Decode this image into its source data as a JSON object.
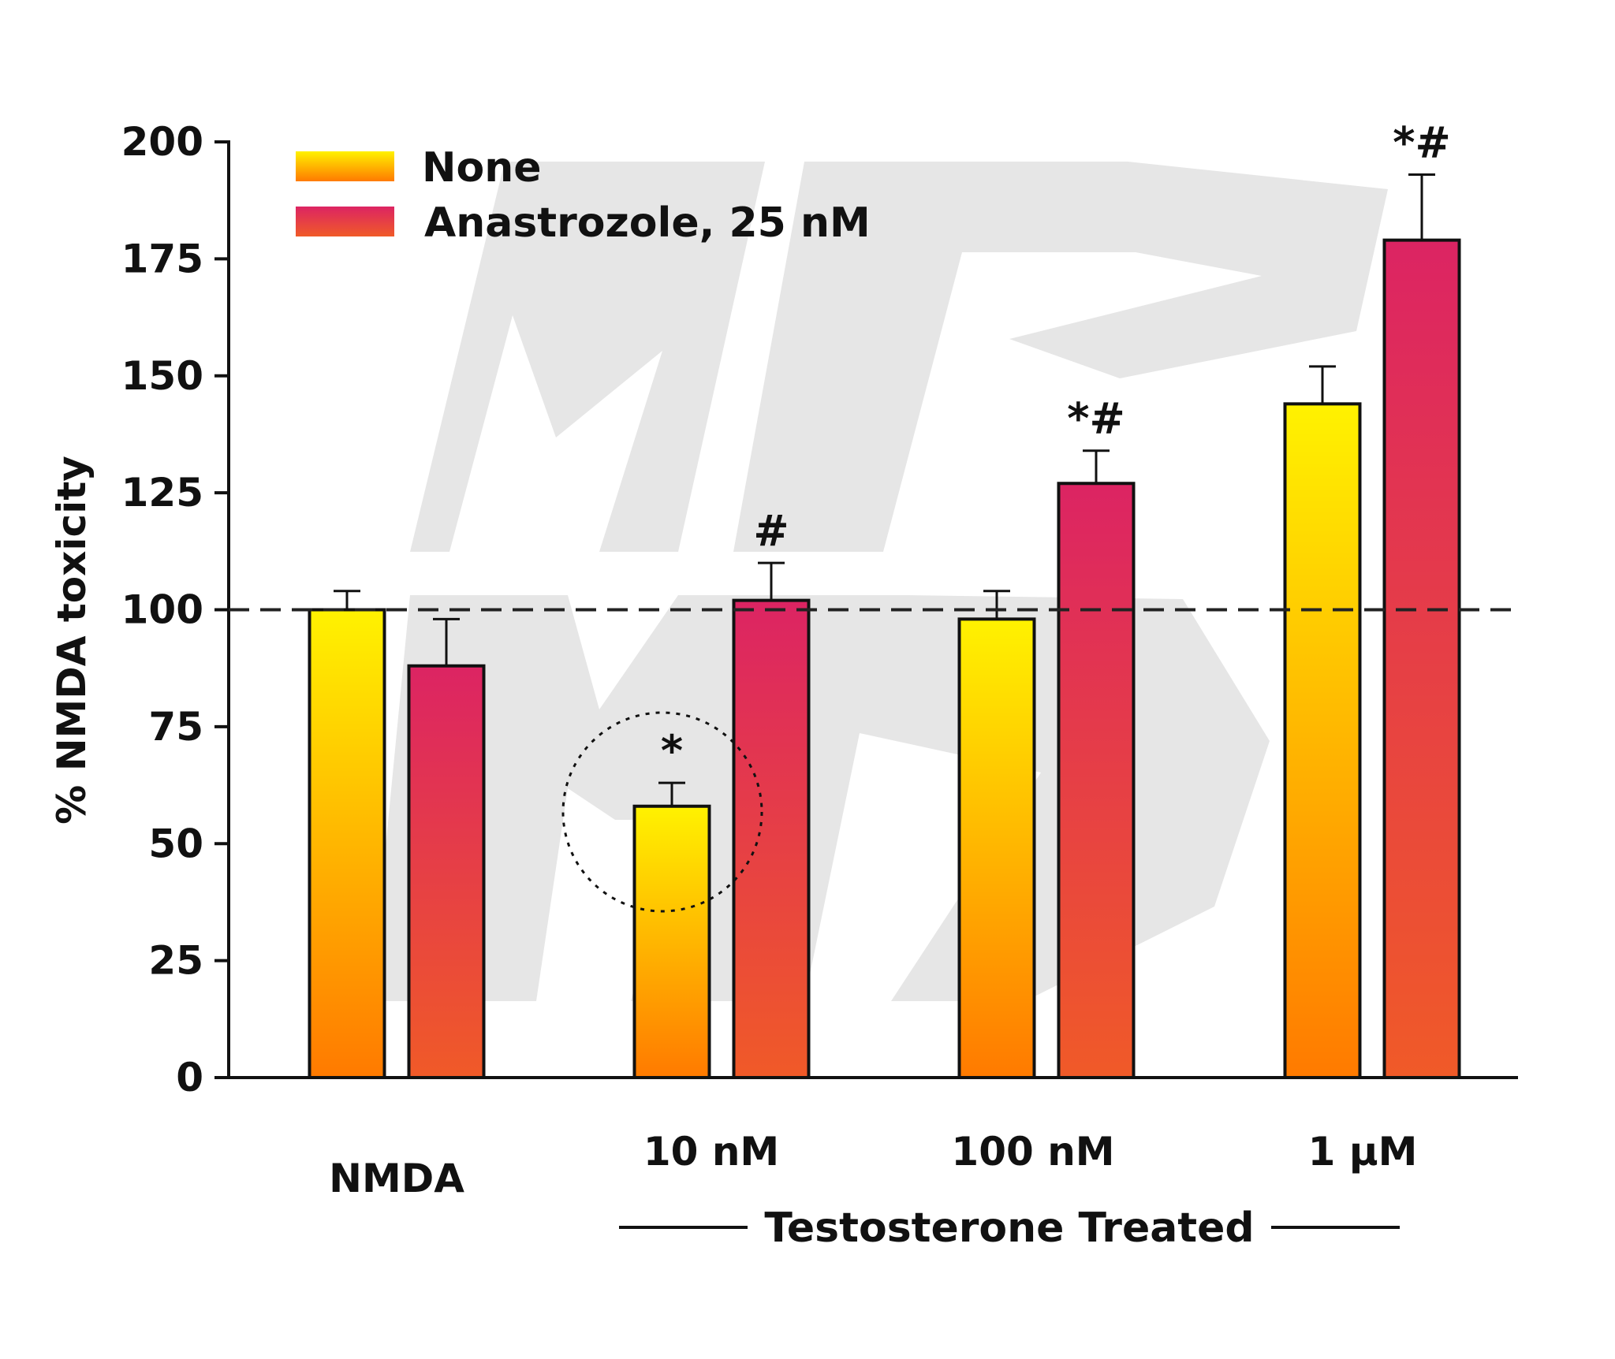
{
  "chart_data": {
    "type": "bar",
    "title": "",
    "ylabel": "% NMDA toxicity",
    "ylim": [
      0,
      200
    ],
    "y_ticks": [
      "0",
      "25",
      "50",
      "75",
      "100",
      "125",
      "150",
      "175",
      "200"
    ],
    "categories": [
      "NMDA",
      "10 nM",
      "100 nM",
      "1 μM"
    ],
    "group_label": "Testosterone Treated",
    "reference_line": 100,
    "legend_position": "top-left",
    "series": [
      {
        "name": "None",
        "values": [
          100,
          58,
          98,
          144
        ],
        "errors": [
          4,
          5,
          6,
          8
        ],
        "annotations": [
          "",
          "*",
          "",
          ""
        ],
        "color_top": "#fff200",
        "color_bottom": "#ff7a00"
      },
      {
        "name": "Anastrozole, 25 nM",
        "values": [
          88,
          102,
          127,
          179
        ],
        "errors": [
          10,
          8,
          7,
          14
        ],
        "annotations": [
          "",
          "#",
          "*#",
          "*#"
        ],
        "color_top": "#dc2463",
        "color_bottom": "#f05a28"
      }
    ],
    "watermark": "MP"
  }
}
